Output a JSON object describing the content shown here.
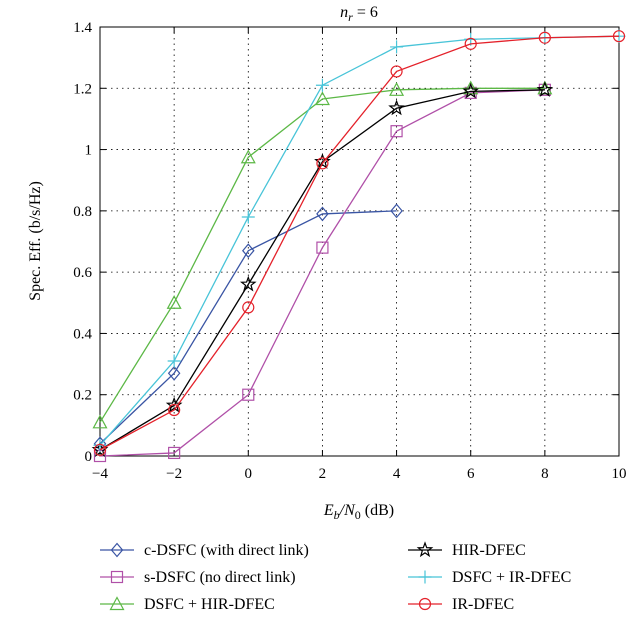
{
  "chart_data": {
    "type": "line",
    "title": "n_r = 6",
    "title_main": "n",
    "title_sub": "r",
    "title_rest": " = 6",
    "xlabel": "E_b/N_0 (dB)",
    "xlabel_parts": {
      "e": "E",
      "e_sub": "b",
      "slash": "/N",
      "n_sub": "0",
      "rest": " (dB)"
    },
    "ylabel": "Spec. Eff. (b/s/Hz)",
    "xlim": [
      -4,
      10
    ],
    "ylim": [
      0,
      1.4
    ],
    "xticks": [
      -4,
      -2,
      0,
      2,
      4,
      6,
      8,
      10
    ],
    "xtick_labels": [
      "−4",
      "−2",
      "0",
      "2",
      "4",
      "6",
      "8",
      "10"
    ],
    "yticks": [
      0,
      0.2,
      0.4,
      0.6,
      0.8,
      1,
      1.2,
      1.4
    ],
    "ytick_labels": [
      "0",
      "0.2",
      "0.4",
      "0.6",
      "0.8",
      "1",
      "1.2",
      "1.4"
    ],
    "grid": true,
    "legend_position": "bottom-outside",
    "series": [
      {
        "name": "c-DSFC (with direct link)",
        "color": "#3a55a4",
        "marker": "diamond",
        "x": [
          -4,
          -2,
          0,
          2,
          4
        ],
        "y": [
          0.04,
          0.27,
          0.67,
          0.79,
          0.8
        ]
      },
      {
        "name": "s-DSFC (no direct link)",
        "color": "#b050a8",
        "marker": "square",
        "x": [
          -4,
          -2,
          0,
          2,
          4,
          6,
          8
        ],
        "y": [
          0.0,
          0.01,
          0.2,
          0.68,
          1.06,
          1.185,
          1.195
        ]
      },
      {
        "name": "DSFC + HIR-DFEC",
        "color": "#5cb846",
        "marker": "triangle",
        "x": [
          -4,
          -2,
          0,
          2,
          4,
          6,
          8
        ],
        "y": [
          0.11,
          0.5,
          0.975,
          1.165,
          1.195,
          1.2,
          1.2
        ]
      },
      {
        "name": "HIR-DFEC",
        "color": "#000000",
        "marker": "star",
        "x": [
          -4,
          -2,
          0,
          2,
          4,
          6,
          8
        ],
        "y": [
          0.02,
          0.165,
          0.56,
          0.96,
          1.135,
          1.19,
          1.195
        ]
      },
      {
        "name": "DSFC + IR-DFEC",
        "color": "#48c4d8",
        "marker": "plus",
        "x": [
          -4,
          -2,
          0,
          2,
          4,
          6,
          8,
          10
        ],
        "y": [
          0.035,
          0.31,
          0.78,
          1.21,
          1.335,
          1.36,
          1.365,
          1.37
        ]
      },
      {
        "name": "IR-DFEC",
        "color": "#e4212a",
        "marker": "circle",
        "x": [
          -4,
          -2,
          0,
          2,
          4,
          6,
          8,
          10
        ],
        "y": [
          0.02,
          0.15,
          0.485,
          0.955,
          1.255,
          1.345,
          1.365,
          1.37
        ]
      }
    ]
  }
}
